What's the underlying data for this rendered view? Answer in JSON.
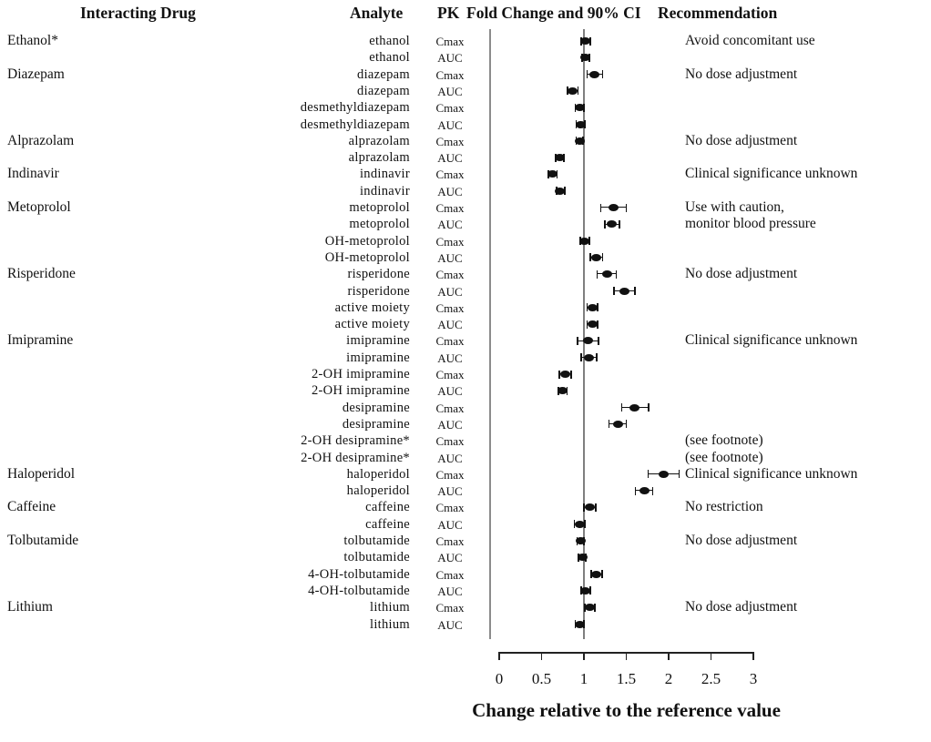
{
  "header": {
    "col_drug": "Interacting Drug",
    "col_analyte": "Analyte",
    "col_pk": "PK",
    "col_fold": "Fold Change and 90% CI",
    "col_rec": "Recommendation"
  },
  "chart_data": {
    "type": "forest",
    "title": "",
    "xlabel": "Change relative to the reference value",
    "xlim": [
      0,
      3
    ],
    "x_ticks": [
      "0",
      "0.5",
      "1",
      "1.5",
      "2",
      "2.5",
      "3"
    ],
    "x_tick_values": [
      0,
      0.5,
      1,
      1.5,
      2,
      2.5,
      3
    ],
    "reference_value": 1,
    "grid": false,
    "point_color": "#111111",
    "rows": [
      {
        "drug": "Ethanol*",
        "analyte": "ethanol",
        "pk": "Cmax",
        "est": 1.02,
        "lo": 0.97,
        "hi": 1.07,
        "rec": "Avoid concomitant use"
      },
      {
        "drug": "",
        "analyte": "ethanol",
        "pk": "AUC",
        "est": 1.02,
        "lo": 0.98,
        "hi": 1.06,
        "rec": ""
      },
      {
        "drug": "Diazepam",
        "analyte": "diazepam",
        "pk": "Cmax",
        "est": 1.12,
        "lo": 1.04,
        "hi": 1.22,
        "rec": "No dose adjustment"
      },
      {
        "drug": "",
        "analyte": "diazepam",
        "pk": "AUC",
        "est": 0.87,
        "lo": 0.81,
        "hi": 0.93,
        "rec": ""
      },
      {
        "drug": "",
        "analyte": "desmethyldiazepam",
        "pk": "Cmax",
        "est": 0.95,
        "lo": 0.9,
        "hi": 1.0,
        "rec": ""
      },
      {
        "drug": "",
        "analyte": "desmethyldiazepam",
        "pk": "AUC",
        "est": 0.96,
        "lo": 0.91,
        "hi": 1.01,
        "rec": ""
      },
      {
        "drug": "Alprazolam",
        "analyte": "alprazolam",
        "pk": "Cmax",
        "est": 0.95,
        "lo": 0.91,
        "hi": 0.99,
        "rec": "No dose adjustment"
      },
      {
        "drug": "",
        "analyte": "alprazolam",
        "pk": "AUC",
        "est": 0.71,
        "lo": 0.67,
        "hi": 0.76,
        "rec": ""
      },
      {
        "drug": "Indinavir",
        "analyte": "indinavir",
        "pk": "Cmax",
        "est": 0.63,
        "lo": 0.58,
        "hi": 0.68,
        "rec": "Clinical significance unknown"
      },
      {
        "drug": "",
        "analyte": "indinavir",
        "pk": "AUC",
        "est": 0.72,
        "lo": 0.68,
        "hi": 0.77,
        "rec": ""
      },
      {
        "drug": "Metoprolol",
        "analyte": "metoprolol",
        "pk": "Cmax",
        "est": 1.35,
        "lo": 1.2,
        "hi": 1.5,
        "rec": "Use with caution,"
      },
      {
        "drug": "",
        "analyte": "metoprolol",
        "pk": "AUC",
        "est": 1.33,
        "lo": 1.25,
        "hi": 1.42,
        "rec": "monitor blood pressure"
      },
      {
        "drug": "",
        "analyte": "OH-metoprolol",
        "pk": "Cmax",
        "est": 1.01,
        "lo": 0.96,
        "hi": 1.06,
        "rec": ""
      },
      {
        "drug": "",
        "analyte": "OH-metoprolol",
        "pk": "AUC",
        "est": 1.15,
        "lo": 1.08,
        "hi": 1.22,
        "rec": ""
      },
      {
        "drug": "Risperidone",
        "analyte": "risperidone",
        "pk": "Cmax",
        "est": 1.27,
        "lo": 1.16,
        "hi": 1.38,
        "rec": "No dose adjustment"
      },
      {
        "drug": "",
        "analyte": "risperidone",
        "pk": "AUC",
        "est": 1.48,
        "lo": 1.36,
        "hi": 1.6,
        "rec": ""
      },
      {
        "drug": "",
        "analyte": "active moiety",
        "pk": "Cmax",
        "est": 1.1,
        "lo": 1.04,
        "hi": 1.16,
        "rec": ""
      },
      {
        "drug": "",
        "analyte": "active moiety",
        "pk": "AUC",
        "est": 1.1,
        "lo": 1.04,
        "hi": 1.16,
        "rec": ""
      },
      {
        "drug": "Imipramine",
        "analyte": "imipramine",
        "pk": "Cmax",
        "est": 1.05,
        "lo": 0.93,
        "hi": 1.17,
        "rec": "Clinical significance unknown"
      },
      {
        "drug": "",
        "analyte": "imipramine",
        "pk": "AUC",
        "est": 1.06,
        "lo": 0.97,
        "hi": 1.15,
        "rec": ""
      },
      {
        "drug": "",
        "analyte": "2-OH imipramine",
        "pk": "Cmax",
        "est": 0.78,
        "lo": 0.71,
        "hi": 0.85,
        "rec": ""
      },
      {
        "drug": "",
        "analyte": "2-OH imipramine",
        "pk": "AUC",
        "est": 0.75,
        "lo": 0.7,
        "hi": 0.8,
        "rec": ""
      },
      {
        "drug": "",
        "analyte": "desipramine",
        "pk": "Cmax",
        "est": 1.6,
        "lo": 1.45,
        "hi": 1.76,
        "rec": ""
      },
      {
        "drug": "",
        "analyte": "desipramine",
        "pk": "AUC",
        "est": 1.4,
        "lo": 1.3,
        "hi": 1.5,
        "rec": ""
      },
      {
        "drug": "",
        "analyte": "2-OH desipramine*",
        "pk": "Cmax",
        "est": null,
        "lo": null,
        "hi": null,
        "rec": "(see footnote)"
      },
      {
        "drug": "",
        "analyte": "2-OH desipramine*",
        "pk": "AUC",
        "est": null,
        "lo": null,
        "hi": null,
        "rec": "(see footnote)"
      },
      {
        "drug": "Haloperidol",
        "analyte": "haloperidol",
        "pk": "Cmax",
        "est": 1.94,
        "lo": 1.76,
        "hi": 2.12,
        "rec": "Clinical significance unknown"
      },
      {
        "drug": "",
        "analyte": "haloperidol",
        "pk": "AUC",
        "est": 1.71,
        "lo": 1.61,
        "hi": 1.81,
        "rec": ""
      },
      {
        "drug": "Caffeine",
        "analyte": "caffeine",
        "pk": "Cmax",
        "est": 1.07,
        "lo": 1.0,
        "hi": 1.14,
        "rec": "No restriction"
      },
      {
        "drug": "",
        "analyte": "caffeine",
        "pk": "AUC",
        "est": 0.95,
        "lo": 0.89,
        "hi": 1.01,
        "rec": ""
      },
      {
        "drug": "Tolbutamide",
        "analyte": "tolbutamide",
        "pk": "Cmax",
        "est": 0.96,
        "lo": 0.92,
        "hi": 1.0,
        "rec": "No dose adjustment"
      },
      {
        "drug": "",
        "analyte": "tolbutamide",
        "pk": "AUC",
        "est": 0.98,
        "lo": 0.94,
        "hi": 1.02,
        "rec": ""
      },
      {
        "drug": "",
        "analyte": "4-OH-tolbutamide",
        "pk": "Cmax",
        "est": 1.15,
        "lo": 1.09,
        "hi": 1.21,
        "rec": ""
      },
      {
        "drug": "",
        "analyte": "4-OH-tolbutamide",
        "pk": "AUC",
        "est": 1.02,
        "lo": 0.97,
        "hi": 1.07,
        "rec": ""
      },
      {
        "drug": "Lithium",
        "analyte": "lithium",
        "pk": "Cmax",
        "est": 1.07,
        "lo": 1.01,
        "hi": 1.13,
        "rec": "No dose adjustment"
      },
      {
        "drug": "",
        "analyte": "lithium",
        "pk": "AUC",
        "est": 0.95,
        "lo": 0.9,
        "hi": 1.0,
        "rec": ""
      }
    ]
  }
}
